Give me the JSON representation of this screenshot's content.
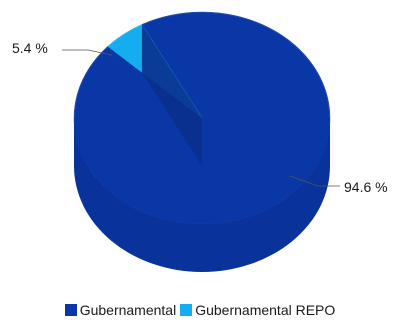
{
  "chart_data": {
    "type": "pie",
    "title": "",
    "labels": [
      "Gubernamental",
      "Gubernamental REPO"
    ],
    "values": [
      94.6,
      5.4
    ],
    "value_labels": [
      "94.6 %",
      "5.4 %"
    ],
    "colors": [
      "#0a37a6",
      "#14aef0"
    ],
    "legend_position": "bottom",
    "style": "3d"
  }
}
